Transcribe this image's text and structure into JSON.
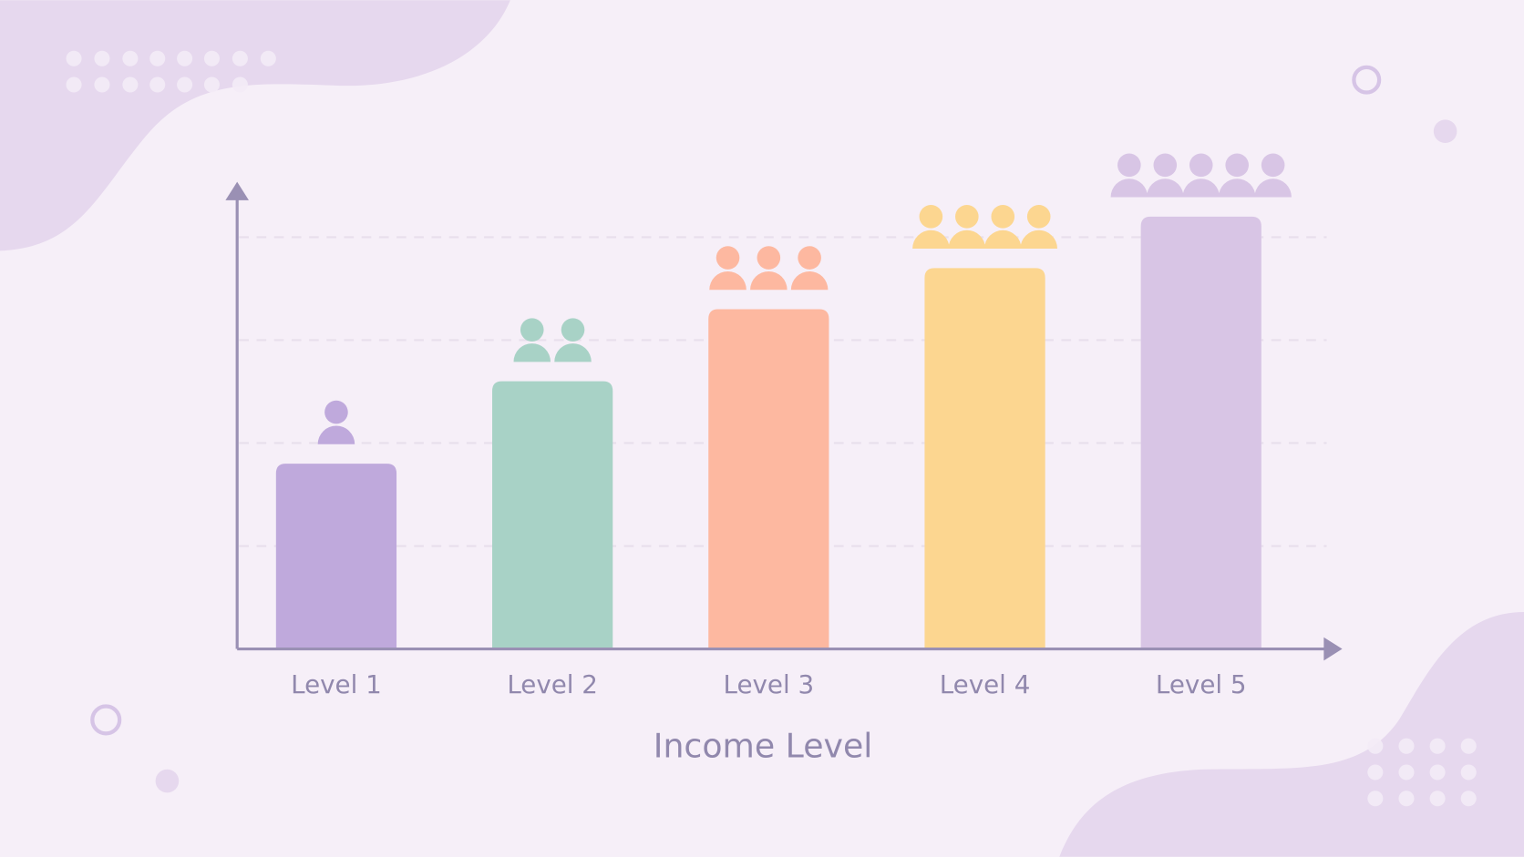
{
  "chart_data": {
    "type": "bar",
    "x_label": "Income Level",
    "categories": [
      "Level 1",
      "Level 2",
      "Level 3",
      "Level 4",
      "Level 5"
    ],
    "values": [
      1.8,
      2.6,
      3.3,
      3.7,
      4.2
    ],
    "icons": [
      1,
      2,
      3,
      4,
      5
    ],
    "colors": [
      "#bfa9dc",
      "#a8d2c6",
      "#fdb8a0",
      "#fcd690",
      "#d8c5e5"
    ],
    "ylim": [
      0,
      4.5
    ],
    "gridlines": [
      1,
      2,
      3,
      4
    ],
    "grid": true
  }
}
